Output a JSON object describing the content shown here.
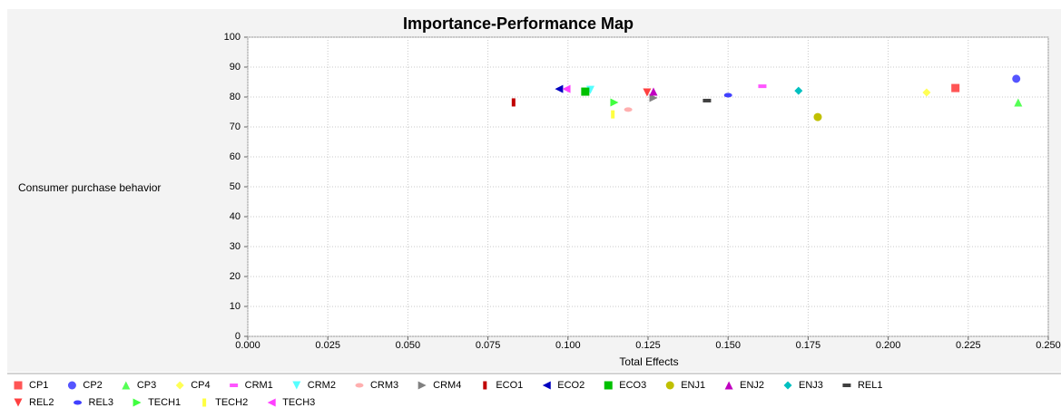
{
  "chart_data": {
    "type": "scatter",
    "title": "Importance-Performance Map",
    "x_label": "Total Effects",
    "y_label": "Consumer purchase behavior",
    "xlim": [
      0,
      0.25
    ],
    "ylim": [
      0,
      100
    ],
    "xticks": [
      {
        "value": 0,
        "label": "0.000"
      },
      {
        "value": 0.025,
        "label": "0.025"
      },
      {
        "value": 0.05,
        "label": "0.050"
      },
      {
        "value": 0.075,
        "label": "0.075"
      },
      {
        "value": 0.1,
        "label": "0.100"
      },
      {
        "value": 0.125,
        "label": "0.125"
      },
      {
        "value": 0.15,
        "label": "0.150"
      },
      {
        "value": 0.175,
        "label": "0.175"
      },
      {
        "value": 0.2,
        "label": "0.200"
      },
      {
        "value": 0.225,
        "label": "0.225"
      },
      {
        "value": 0.25,
        "label": "0.250"
      }
    ],
    "yticks": [
      0,
      10,
      20,
      30,
      40,
      50,
      60,
      70,
      80,
      90,
      100
    ],
    "grid": true,
    "legend": "bottom",
    "series": [
      {
        "name": "CP1",
        "color": "#ff5555",
        "marker": "square",
        "x": [
          0.221
        ],
        "values": [
          83.0
        ]
      },
      {
        "name": "CP2",
        "color": "#5555ff",
        "marker": "circle",
        "x": [
          0.24
        ],
        "values": [
          86.1
        ]
      },
      {
        "name": "CP3",
        "color": "#55ff55",
        "marker": "triangle-up",
        "x": [
          0.2406
        ],
        "values": [
          78.2
        ]
      },
      {
        "name": "CP4",
        "color": "#ffff55",
        "marker": "diamond",
        "x": [
          0.212
        ],
        "values": [
          81.5
        ]
      },
      {
        "name": "CRM1",
        "color": "#ff55ff",
        "marker": "dash",
        "x": [
          0.1607
        ],
        "values": [
          83.6
        ]
      },
      {
        "name": "CRM2",
        "color": "#55ffff",
        "marker": "triangle-down",
        "x": [
          0.107
        ],
        "values": [
          82.4
        ]
      },
      {
        "name": "CRM3",
        "color": "#ffafaf",
        "marker": "ellipse",
        "x": [
          0.1188
        ],
        "values": [
          75.8
        ]
      },
      {
        "name": "CRM4",
        "color": "#808080",
        "marker": "triangle-right",
        "x": [
          0.1267
        ],
        "values": [
          79.7
        ]
      },
      {
        "name": "ECO1",
        "color": "#c00000",
        "marker": "bar",
        "x": [
          0.083
        ],
        "values": [
          78.2
        ]
      },
      {
        "name": "ECO2",
        "color": "#0000c0",
        "marker": "triangle-left",
        "x": [
          0.0972
        ],
        "values": [
          82.7
        ]
      },
      {
        "name": "ECO3",
        "color": "#00c000",
        "marker": "square",
        "x": [
          0.1054
        ],
        "values": [
          81.8
        ]
      },
      {
        "name": "ENJ1",
        "color": "#c0c000",
        "marker": "circle",
        "x": [
          0.178
        ],
        "values": [
          73.3
        ]
      },
      {
        "name": "ENJ2",
        "color": "#c000c0",
        "marker": "triangle-up",
        "x": [
          0.1267
        ],
        "values": [
          81.8
        ]
      },
      {
        "name": "ENJ3",
        "color": "#00c0c0",
        "marker": "diamond",
        "x": [
          0.172
        ],
        "values": [
          82.1
        ]
      },
      {
        "name": "REL1",
        "color": "#404040",
        "marker": "dash",
        "x": [
          0.1434
        ],
        "values": [
          78.8
        ]
      },
      {
        "name": "REL2",
        "color": "#ff4040",
        "marker": "triangle-down",
        "x": [
          0.1247
        ],
        "values": [
          81.5
        ]
      },
      {
        "name": "REL3",
        "color": "#4040ff",
        "marker": "ellipse",
        "x": [
          0.15
        ],
        "values": [
          80.6
        ]
      },
      {
        "name": "TECH1",
        "color": "#40ff40",
        "marker": "triangle-right",
        "x": [
          0.1145
        ],
        "values": [
          78.2
        ]
      },
      {
        "name": "TECH2",
        "color": "#ffff40",
        "marker": "bar",
        "x": [
          0.114
        ],
        "values": [
          74.2
        ]
      },
      {
        "name": "TECH3",
        "color": "#ff40ff",
        "marker": "triangle-left",
        "x": [
          0.0995
        ],
        "values": [
          82.7
        ]
      }
    ]
  }
}
